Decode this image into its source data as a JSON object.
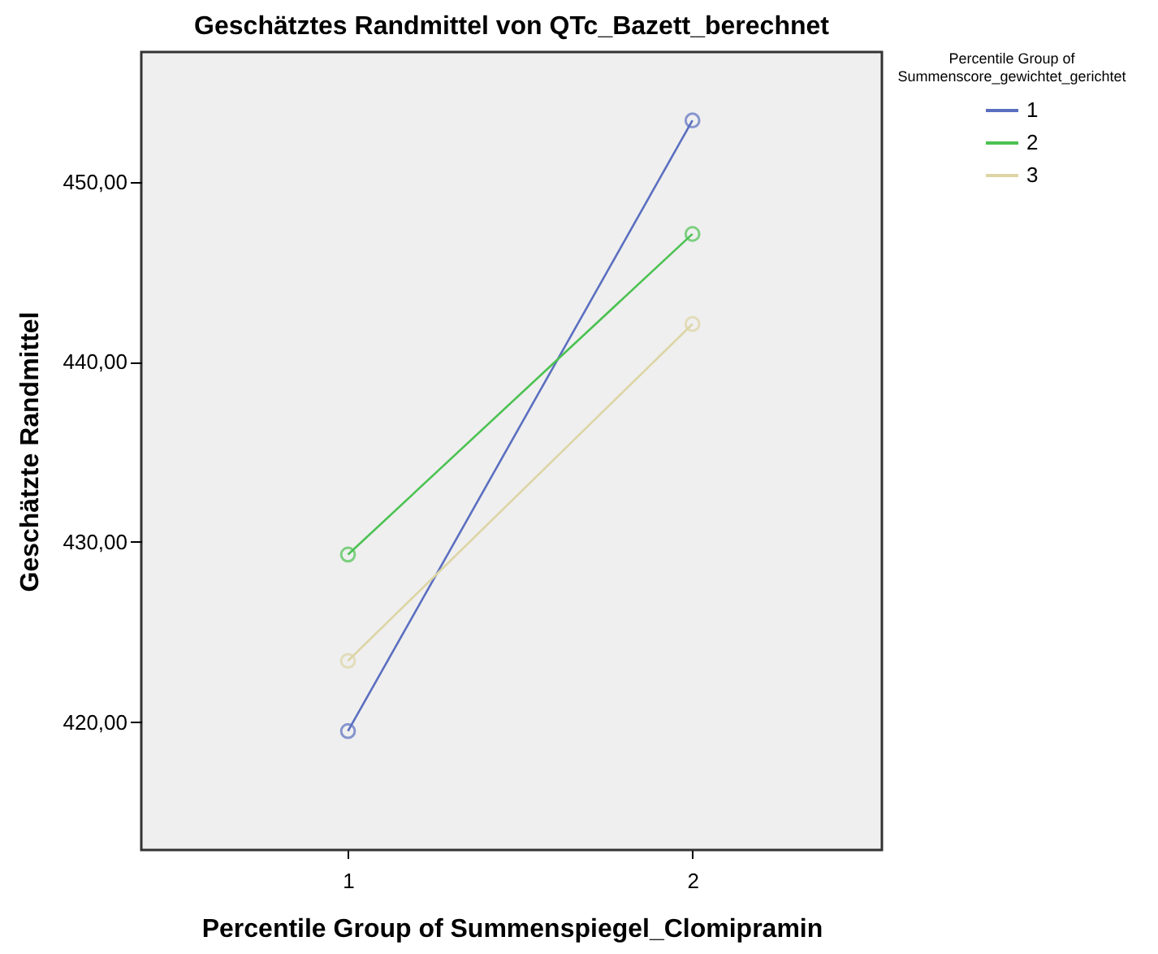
{
  "chart_data": {
    "type": "line",
    "title": "Geschätztes Randmittel von QTc_Bazett_berechnet",
    "xlabel": "Percentile Group of Summenspiegel_Clomipramin",
    "ylabel": "Geschätzte Randmittel",
    "legend_title": "Percentile Group of Summenscore_gewichtet_gerichtet",
    "categories": [
      "1",
      "2"
    ],
    "series": [
      {
        "name": "1",
        "color": "#5b6fc0",
        "values": [
          419.5,
          453.4
        ]
      },
      {
        "name": "2",
        "color": "#4cc252",
        "values": [
          429.3,
          447.1
        ]
      },
      {
        "name": "3",
        "color": "#ddd5a5",
        "values": [
          423.4,
          442.1
        ]
      }
    ],
    "ylim": [
      412.9,
      457.2
    ],
    "yticks": [
      {
        "value": 420,
        "label": "420,00"
      },
      {
        "value": 430,
        "label": "430,00"
      },
      {
        "value": 440,
        "label": "440,00"
      },
      {
        "value": 450,
        "label": "450,00"
      }
    ],
    "grid": false,
    "legend": "top right",
    "marker": "circle",
    "line_style": "solid"
  }
}
